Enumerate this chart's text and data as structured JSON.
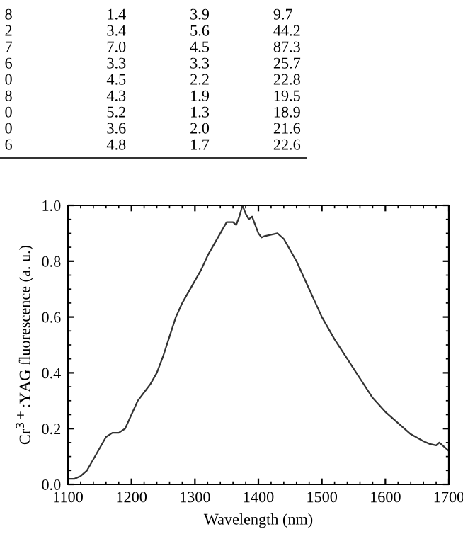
{
  "chart_data": {
    "type": "line",
    "xlabel": "Wavelength (nm)",
    "ylabel": "Cr$^{3+}$:YAG fluorescence (a. u.)",
    "annotations": [
      "8 1.4 3.9 9.7",
      "2 3.4 5.6 44.2",
      "7 7.0 4.5 87.3",
      "6 3.3 3.3 25.7",
      "0 4.5 2.2 22.8",
      "8 4.3 1.9 19.5",
      "0 5.2 1.3 18.9",
      "0 3.6 2.0 21.6",
      "6 4.8 1.7 22.6"
    ],
    "x": [
      1100,
      1110,
      1120,
      1130,
      1140,
      1150,
      1160,
      1170,
      1180,
      1190,
      1200,
      1210,
      1220,
      1230,
      1240,
      1250,
      1260,
      1270,
      1280,
      1290,
      1300,
      1310,
      1320,
      1330,
      1340,
      1350,
      1360,
      1365,
      1370,
      1375,
      1380,
      1385,
      1390,
      1395,
      1400,
      1405,
      1410,
      1420,
      1430,
      1440,
      1450,
      1460,
      1470,
      1480,
      1490,
      1500,
      1520,
      1540,
      1560,
      1580,
      1600,
      1620,
      1640,
      1660,
      1670,
      1680,
      1685,
      1690,
      1700
    ],
    "series": [
      {
        "color": "#333333",
        "values": [
          0.02,
          0.02,
          0.03,
          0.05,
          0.09,
          0.13,
          0.17,
          0.185,
          0.185,
          0.2,
          0.25,
          0.3,
          0.33,
          0.36,
          0.4,
          0.46,
          0.53,
          0.6,
          0.65,
          0.69,
          0.73,
          0.77,
          0.82,
          0.86,
          0.9,
          0.94,
          0.94,
          0.93,
          0.96,
          1.0,
          0.97,
          0.95,
          0.96,
          0.93,
          0.9,
          0.885,
          0.89,
          0.895,
          0.9,
          0.88,
          0.84,
          0.8,
          0.75,
          0.7,
          0.65,
          0.6,
          0.52,
          0.45,
          0.38,
          0.31,
          0.26,
          0.22,
          0.18,
          0.155,
          0.145,
          0.14,
          0.15,
          0.14,
          0.12
        ]
      }
    ],
    "xlim": [
      1100,
      1700
    ],
    "xticks": [
      1100,
      1200,
      1300,
      1400,
      1500,
      1600,
      1700
    ],
    "ylim": [
      0.0,
      1.0
    ],
    "yticks": [
      {
        "value": 0,
        "label": "0.0"
      },
      {
        "value": 0.2,
        "label": "0.2"
      },
      {
        "value": 0.4,
        "label": "0.4"
      },
      {
        "value": 0.6,
        "label": "0.6"
      },
      {
        "value": 0.8,
        "label": "0.8"
      },
      {
        "value": 1,
        "label": "1.0"
      }
    ],
    "grid": false,
    "legend": false
  }
}
